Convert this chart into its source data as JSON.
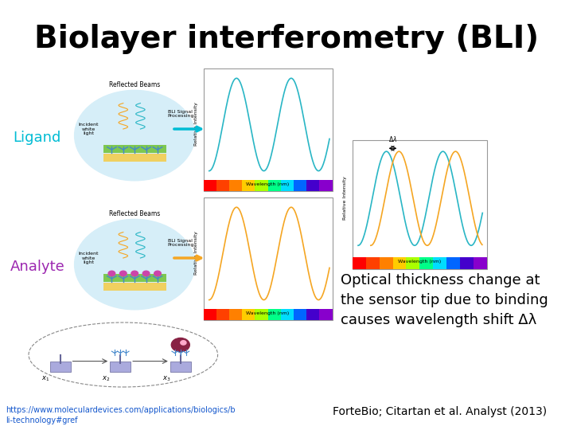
{
  "title": "Biolayer interferometry (BLI)",
  "title_fontsize": 28,
  "title_fontweight": "bold",
  "bg_color": "#ffffff",
  "ligand_label": "Ligand",
  "ligand_color": "#00bcd4",
  "analyte_label": "Analyte",
  "analyte_color": "#9c27b0",
  "optical_text_line1": "Optical thickness change at",
  "optical_text_line2": "the sensor tip due to binding",
  "optical_text_line3": "causes wavelength shift Δλ",
  "optical_fontsize": 13,
  "url_text": "https://www.moleculardevices.com/applications/biologics/b\nli-technology#gref",
  "url_color": "#1155cc",
  "url_fontsize": 7,
  "citation_text": "ForteBio; Citartan et al. Analyst (2013)",
  "citation_fontsize": 10,
  "wave_color_cyan": "#29b6c5",
  "wave_color_orange": "#f5a623",
  "xlabel_text": "Wavelength (nm)",
  "ylabel_text": "Relative Intensity",
  "reflected_beams_text": "Reflected Beams",
  "bli_signal_text": "BLI Signal\nProcessing",
  "incident_text": "Incident\nwhite\nlight"
}
